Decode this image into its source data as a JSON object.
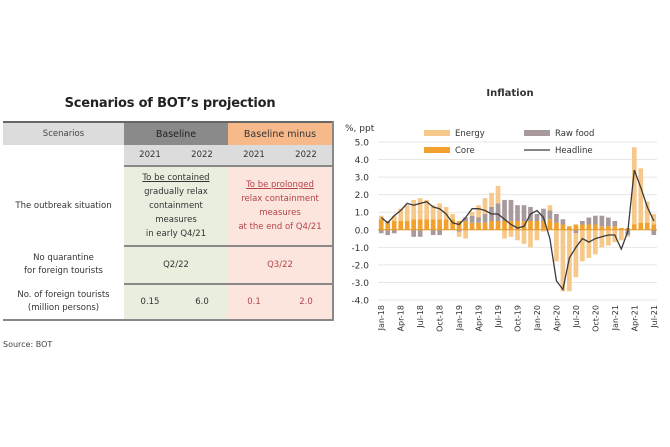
{
  "left_panel": {
    "title": "Scenarios of BOT’s projection",
    "header": {
      "scenarios": "Scenarios",
      "baseline": "Baseline",
      "baseline_minus": "Baseline minus"
    },
    "years": [
      "2021",
      "2022",
      "2021",
      "2022"
    ],
    "rows": {
      "outbreak": {
        "label": "The outbreak situation",
        "baseline_underlined": "To be contained",
        "baseline_rest": [
          "gradually relax",
          "containment",
          "measures",
          "in early Q4/21"
        ],
        "minus_underlined": "To be prolonged",
        "minus_rest": [
          "relax containment",
          "measures",
          "at the end of Q4/21"
        ]
      },
      "quarantine": {
        "label_line1": "No quarantine",
        "label_line2": "for foreign tourists",
        "baseline": "Q2/22",
        "minus": "Q3/22"
      },
      "tourists": {
        "label_line1": "No. of foreign tourists",
        "label_line2": "(million persons)",
        "values": [
          "0.15",
          "6.0",
          "0.1",
          "2.0"
        ]
      }
    },
    "source": "Source: BOT"
  },
  "colors": {
    "energy": "#f6c88a",
    "raw_food": "#a89a9c",
    "core": "#f2a12e",
    "headline": "#3a3a3a",
    "baseline_header": "#8a8a8a",
    "minus_header": "#f7b98a",
    "baseline_cell": "#e9eedf",
    "minus_cell": "#fbe5dc",
    "minus_text": "#b4434b"
  },
  "chart_data": {
    "type": "bar",
    "stacked": true,
    "title": "Inflation",
    "ylabel": "%, ppt",
    "xlabel": "",
    "ylim": [
      -4.0,
      5.0
    ],
    "yticks": [
      "5.0",
      "4.0",
      "3.0",
      "2.0",
      "1.0",
      "0.0",
      "-1.0",
      "-2.0",
      "-3.0",
      "-4.0"
    ],
    "ytick_values": [
      5,
      4,
      3,
      2,
      1,
      0,
      -1,
      -2,
      -3,
      -4
    ],
    "grid": true,
    "legend_position": "top",
    "legend": [
      "Energy",
      "Raw food",
      "Core",
      "Headline"
    ],
    "x_tick_labels": [
      "Jan-18",
      "Apr-18",
      "Jul-18",
      "Oct-18",
      "Jan-19",
      "Apr-19",
      "Jul-19",
      "Oct-19",
      "Jan-20",
      "Apr-20",
      "Jul-20",
      "Oct-20",
      "Jan-21",
      "Apr-21",
      "Jul-21"
    ],
    "x_tick_every": 3,
    "months": [
      "Jan-18",
      "Feb-18",
      "Mar-18",
      "Apr-18",
      "May-18",
      "Jun-18",
      "Jul-18",
      "Aug-18",
      "Sep-18",
      "Oct-18",
      "Nov-18",
      "Dec-18",
      "Jan-19",
      "Feb-19",
      "Mar-19",
      "Apr-19",
      "May-19",
      "Jun-19",
      "Jul-19",
      "Aug-19",
      "Sep-19",
      "Oct-19",
      "Nov-19",
      "Dec-19",
      "Jan-20",
      "Feb-20",
      "Mar-20",
      "Apr-20",
      "May-20",
      "Jun-20",
      "Jul-20",
      "Aug-20",
      "Sep-20",
      "Oct-20",
      "Nov-20",
      "Dec-20",
      "Jan-21",
      "Feb-21",
      "Mar-21",
      "Apr-21",
      "May-21",
      "Jun-21",
      "Jul-21"
    ],
    "series": [
      {
        "name": "Core",
        "kind": "bar",
        "values": [
          0.6,
          0.5,
          0.5,
          0.5,
          0.5,
          0.6,
          0.6,
          0.6,
          0.6,
          0.6,
          0.6,
          0.6,
          0.5,
          0.5,
          0.4,
          0.4,
          0.4,
          0.5,
          0.5,
          0.5,
          0.5,
          0.5,
          0.5,
          0.5,
          0.5,
          0.5,
          0.6,
          0.4,
          0.3,
          0.2,
          0.3,
          0.3,
          0.3,
          0.3,
          0.2,
          0.2,
          0.2,
          0.1,
          0.1,
          0.3,
          0.4,
          0.4,
          0.3
        ]
      },
      {
        "name": "Energy",
        "kind": "bar",
        "values": [
          0.2,
          0.0,
          0.3,
          0.7,
          0.9,
          1.1,
          1.2,
          1.1,
          0.8,
          0.9,
          0.7,
          0.3,
          -0.3,
          -0.5,
          0.2,
          0.7,
          0.9,
          0.8,
          1.0,
          -0.5,
          -0.4,
          -0.6,
          -0.8,
          -1.0,
          -0.6,
          -0.1,
          0.3,
          -1.8,
          -3.5,
          -3.5,
          -2.5,
          -1.8,
          -1.6,
          -1.4,
          -1.0,
          -0.9,
          -0.7,
          -0.6,
          -0.1,
          4.4,
          3.1,
          1.2,
          0.6
        ]
      },
      {
        "name": "Raw food",
        "kind": "bar",
        "values": [
          -0.2,
          -0.3,
          -0.2,
          0.0,
          0.0,
          -0.4,
          -0.4,
          0.0,
          -0.3,
          -0.3,
          0.0,
          0.0,
          -0.1,
          0.2,
          0.4,
          0.3,
          0.5,
          0.8,
          1.0,
          1.2,
          1.2,
          0.9,
          0.9,
          0.8,
          0.4,
          0.7,
          0.5,
          0.5,
          0.3,
          0.0,
          -0.2,
          0.2,
          0.4,
          0.5,
          0.6,
          0.5,
          0.3,
          0.0,
          -0.3,
          0.0,
          0.0,
          0.0,
          -0.3
        ]
      },
      {
        "name": "Headline",
        "kind": "line",
        "values": [
          0.7,
          0.4,
          0.8,
          1.1,
          1.5,
          1.4,
          1.5,
          1.6,
          1.3,
          1.2,
          0.9,
          0.4,
          0.3,
          0.7,
          1.2,
          1.2,
          1.1,
          0.9,
          0.9,
          0.6,
          0.3,
          0.1,
          0.2,
          0.9,
          1.1,
          0.7,
          -0.5,
          -2.9,
          -3.4,
          -1.6,
          -1.0,
          -0.5,
          -0.7,
          -0.5,
          -0.4,
          -0.3,
          -0.3,
          -1.1,
          -0.1,
          3.4,
          2.4,
          1.3,
          0.5
        ]
      }
    ]
  }
}
